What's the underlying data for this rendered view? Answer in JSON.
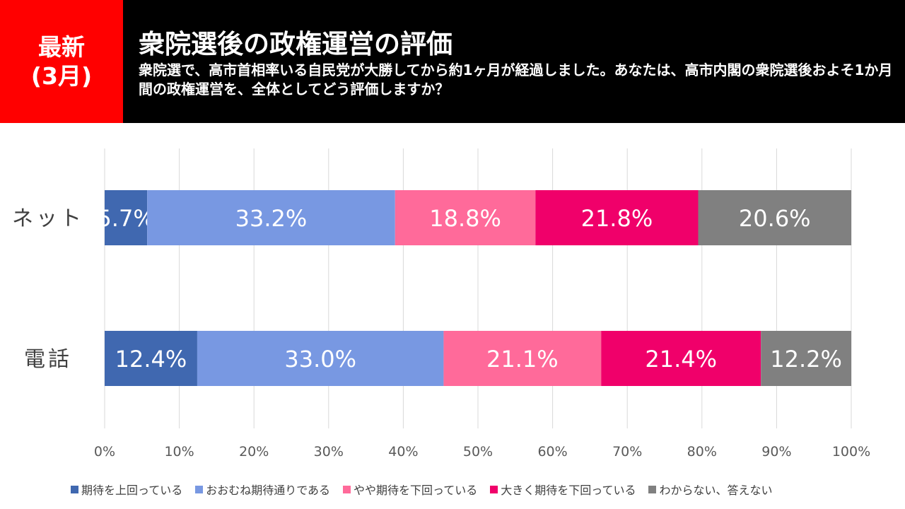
{
  "header": {
    "badge_line1": "最新",
    "badge_line2": "(3月)",
    "title": "衆院選後の政権運営の評価",
    "question": "衆院選で、高市首相率いる自民党が大勝してから約1ヶ月が経過しました。あなたは、高市内閣の衆院選後およそ1か月間の政権運営を、全体としてどう評価しますか？"
  },
  "chart_data": {
    "type": "bar",
    "orientation": "horizontal",
    "stacked": "percent",
    "categories": [
      "ネット",
      "電話"
    ],
    "xlim": [
      0,
      100
    ],
    "xticks": [
      "0%",
      "10%",
      "20%",
      "30%",
      "40%",
      "50%",
      "60%",
      "70%",
      "80%",
      "90%",
      "100%"
    ],
    "grid": true,
    "legend_position": "bottom",
    "series": [
      {
        "name": "期待を上回っている",
        "color": "#4068b0",
        "values": [
          5.7,
          12.4
        ]
      },
      {
        "name": "おおむね期待通りである",
        "color": "#7898e2",
        "values": [
          33.2,
          33.0
        ]
      },
      {
        "name": "やや期待を下回っている",
        "color": "#ff6a9a",
        "values": [
          18.8,
          21.1
        ]
      },
      {
        "name": "大きく期待を下回っている",
        "color": "#f0006a",
        "values": [
          21.8,
          21.4
        ]
      },
      {
        "name": "わからない、答えない",
        "color": "#808080",
        "values": [
          20.6,
          12.2
        ]
      }
    ],
    "data_labels": [
      [
        "5.7%",
        "33.2%",
        "18.8%",
        "21.8%",
        "20.6%"
      ],
      [
        "12.4%",
        "33.0%",
        "21.1%",
        "21.4%",
        "12.2%"
      ]
    ]
  }
}
